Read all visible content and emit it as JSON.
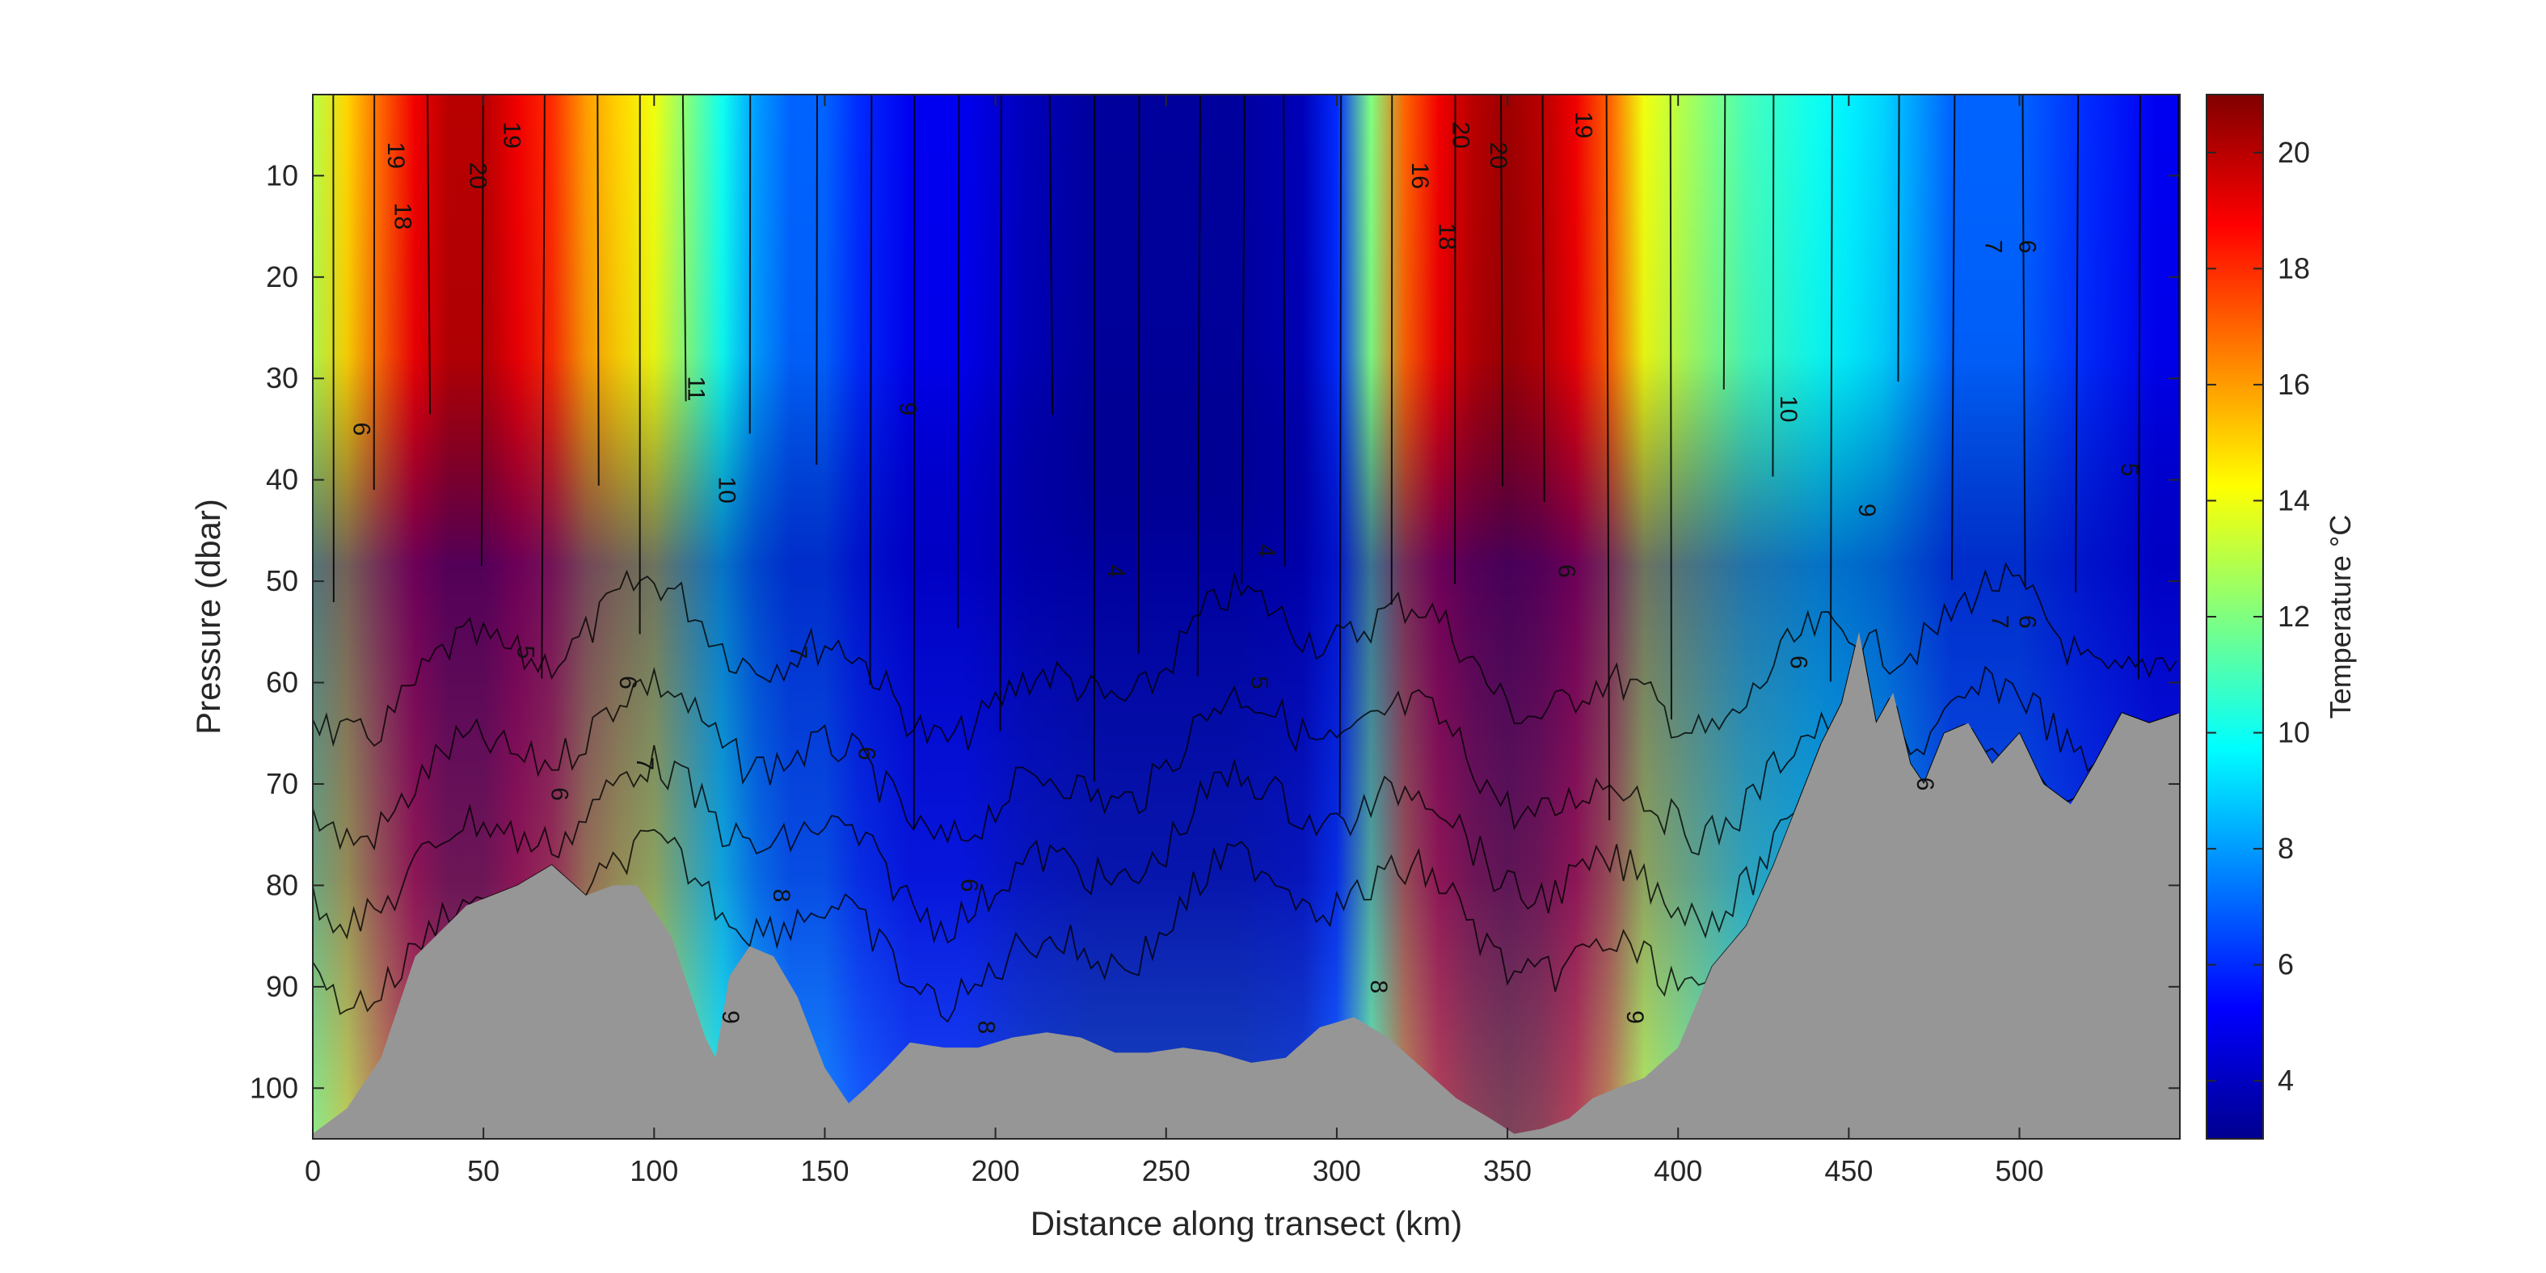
{
  "chart_data": {
    "type": "heatmap",
    "title": "",
    "xlabel": "Distance along transect (km)",
    "ylabel": "Pressure (dbar)",
    "xlim": [
      0,
      547
    ],
    "ylim": [
      105,
      2
    ],
    "y_reversed": true,
    "x_ticks": [
      0,
      50,
      100,
      150,
      200,
      250,
      300,
      350,
      400,
      450,
      500
    ],
    "y_ticks": [
      10,
      20,
      30,
      40,
      50,
      60,
      70,
      80,
      90,
      100
    ],
    "colorbar": {
      "label": "Temperature °C",
      "colormap": "jet",
      "range": [
        3,
        21
      ],
      "ticks": [
        4,
        6,
        8,
        10,
        12,
        14,
        16,
        18,
        20
      ]
    },
    "seabed_color": "#969696",
    "seabed": {
      "distance_km": [
        0,
        10,
        20,
        30,
        45,
        60,
        70,
        80,
        88,
        95,
        105,
        110,
        115,
        118,
        122,
        128,
        135,
        142,
        150,
        157,
        162,
        168,
        175,
        185,
        195,
        205,
        215,
        225,
        235,
        245,
        255,
        265,
        275,
        285,
        295,
        305,
        315,
        325,
        335,
        345,
        352,
        360,
        368,
        375,
        382,
        390,
        400,
        410,
        420,
        428,
        435,
        442,
        448,
        453,
        458,
        463,
        468,
        472,
        478,
        485,
        492,
        500,
        507,
        515,
        522,
        530,
        538,
        547
      ],
      "pressure_dbar": [
        104.5,
        102,
        97,
        87,
        82,
        80,
        78,
        81,
        80,
        80,
        85,
        90,
        95,
        97,
        89,
        86,
        87,
        91,
        98,
        101.5,
        100,
        98,
        95.5,
        96,
        96,
        95,
        94.5,
        95,
        96.5,
        96.5,
        96,
        96.5,
        97.5,
        97,
        94,
        93,
        95,
        98,
        101,
        103,
        104.5,
        104,
        103,
        101,
        100,
        99,
        96,
        88,
        84,
        78,
        72,
        66,
        62,
        55,
        64,
        61,
        68,
        70,
        65,
        64,
        68,
        65,
        70,
        72,
        68,
        63,
        64,
        63
      ]
    },
    "surface_temperature": {
      "distance_km": [
        0,
        10,
        20,
        30,
        40,
        50,
        60,
        70,
        80,
        90,
        100,
        110,
        120,
        130,
        140,
        150,
        160,
        175,
        190,
        210,
        230,
        250,
        270,
        290,
        300,
        310,
        320,
        330,
        340,
        350,
        360,
        370,
        380,
        390,
        400,
        410,
        420,
        430,
        440,
        450,
        460,
        470,
        480,
        500,
        520,
        540,
        547
      ],
      "temperature_c": [
        13,
        15,
        17,
        19,
        20,
        20,
        19,
        18,
        16,
        15,
        14,
        12,
        10,
        8,
        7,
        7,
        6,
        5,
        5,
        4,
        3.5,
        3.5,
        3.5,
        4,
        6,
        12,
        17,
        19,
        20,
        20.5,
        20,
        19,
        17,
        14,
        13,
        12,
        11,
        10.5,
        10,
        9.5,
        9,
        8,
        7,
        7,
        6,
        5,
        5
      ]
    },
    "contour_labels": [
      {
        "x": 22,
        "y": 8,
        "text": "19"
      },
      {
        "x": 46,
        "y": 10,
        "text": "20"
      },
      {
        "x": 56,
        "y": 6,
        "text": "19"
      },
      {
        "x": 24,
        "y": 14,
        "text": "18"
      },
      {
        "x": 110,
        "y": 31,
        "text": "11"
      },
      {
        "x": 119,
        "y": 41,
        "text": "10"
      },
      {
        "x": 12,
        "y": 35,
        "text": "6"
      },
      {
        "x": 60,
        "y": 57,
        "text": "5"
      },
      {
        "x": 70,
        "y": 71,
        "text": "6"
      },
      {
        "x": 90,
        "y": 60,
        "text": "6"
      },
      {
        "x": 95,
        "y": 68,
        "text": "7"
      },
      {
        "x": 140,
        "y": 57,
        "text": "7"
      },
      {
        "x": 135,
        "y": 81,
        "text": "8"
      },
      {
        "x": 120,
        "y": 93,
        "text": "9"
      },
      {
        "x": 172,
        "y": 33,
        "text": "9"
      },
      {
        "x": 160,
        "y": 67,
        "text": "6"
      },
      {
        "x": 190,
        "y": 80,
        "text": "6"
      },
      {
        "x": 195,
        "y": 94,
        "text": "8"
      },
      {
        "x": 233,
        "y": 49,
        "text": "4"
      },
      {
        "x": 277,
        "y": 47,
        "text": "4"
      },
      {
        "x": 275,
        "y": 60,
        "text": "5"
      },
      {
        "x": 310,
        "y": 90,
        "text": "8"
      },
      {
        "x": 322,
        "y": 10,
        "text": "16"
      },
      {
        "x": 334,
        "y": 6,
        "text": "20"
      },
      {
        "x": 345,
        "y": 8,
        "text": "20"
      },
      {
        "x": 370,
        "y": 5,
        "text": "19"
      },
      {
        "x": 330,
        "y": 16,
        "text": "18"
      },
      {
        "x": 365,
        "y": 49,
        "text": "6"
      },
      {
        "x": 385,
        "y": 93,
        "text": "9"
      },
      {
        "x": 430,
        "y": 33,
        "text": "10"
      },
      {
        "x": 453,
        "y": 43,
        "text": "9"
      },
      {
        "x": 433,
        "y": 58,
        "text": "6"
      },
      {
        "x": 490,
        "y": 17,
        "text": "7"
      },
      {
        "x": 500,
        "y": 17,
        "text": "6"
      },
      {
        "x": 492,
        "y": 54,
        "text": "7"
      },
      {
        "x": 500,
        "y": 54,
        "text": "6"
      },
      {
        "x": 530,
        "y": 39,
        "text": "5"
      },
      {
        "x": 470,
        "y": 70,
        "text": "6"
      }
    ]
  }
}
